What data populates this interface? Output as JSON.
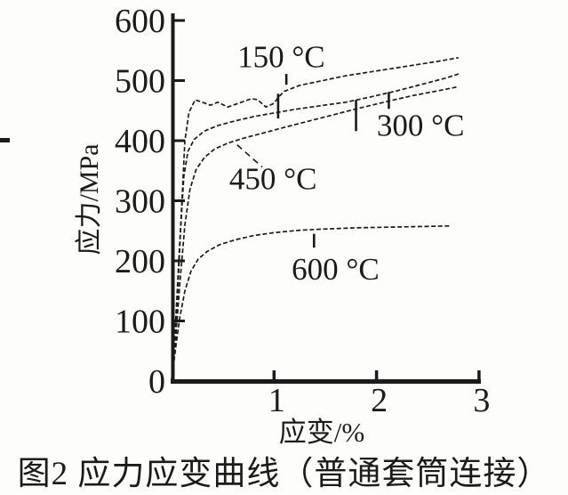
{
  "figure": {
    "caption": "图2 应力应变曲线（普通套筒连接）"
  },
  "colors": {
    "ink": "#1b1b1b",
    "background": "#fdfdfc"
  },
  "chart_data": {
    "type": "line",
    "title": "",
    "xlabel": "应变/%",
    "ylabel": "应力/MPa",
    "xlim": [
      0,
      3.02
    ],
    "ylim": [
      0,
      607
    ],
    "grid": false,
    "legend_position": "inline-labels",
    "xticks": [
      {
        "value": 1,
        "label": "1"
      },
      {
        "value": 2,
        "label": "2"
      },
      {
        "value": 3,
        "label": "3"
      }
    ],
    "yticks": [
      {
        "value": 0,
        "label": "0"
      },
      {
        "value": 100,
        "label": "100"
      },
      {
        "value": 200,
        "label": "200"
      },
      {
        "value": 300,
        "label": "300"
      },
      {
        "value": 400,
        "label": "400"
      },
      {
        "value": 500,
        "label": "500"
      },
      {
        "value": 600,
        "label": "600"
      }
    ],
    "series": [
      {
        "name": "curve-150c",
        "label": "150 °C",
        "label_at": {
          "x": 1.07,
          "y": 540
        },
        "points": [
          [
            0,
            0
          ],
          [
            0.05,
            110
          ],
          [
            0.09,
            260
          ],
          [
            0.13,
            400
          ],
          [
            0.17,
            447
          ],
          [
            0.23,
            468
          ],
          [
            0.3,
            464
          ],
          [
            0.38,
            459
          ],
          [
            0.45,
            464
          ],
          [
            0.55,
            456
          ],
          [
            0.65,
            462
          ],
          [
            0.78,
            470
          ],
          [
            0.84,
            468
          ],
          [
            0.92,
            456
          ],
          [
            1.0,
            462
          ],
          [
            1.04,
            472
          ],
          [
            1.1,
            482
          ],
          [
            1.25,
            492
          ],
          [
            1.42,
            498
          ],
          [
            1.7,
            508
          ],
          [
            2.0,
            516
          ],
          [
            2.3,
            524
          ],
          [
            2.6,
            532
          ],
          [
            2.8,
            538
          ]
        ]
      },
      {
        "name": "curve-300c",
        "label": "300 °C",
        "label_at": {
          "x": 2.43,
          "y": 426
        },
        "points": [
          [
            0,
            0
          ],
          [
            0.04,
            100
          ],
          [
            0.08,
            230
          ],
          [
            0.12,
            340
          ],
          [
            0.16,
            382
          ],
          [
            0.22,
            402
          ],
          [
            0.32,
            416
          ],
          [
            0.45,
            425
          ],
          [
            0.6,
            432
          ],
          [
            0.8,
            440
          ],
          [
            1.0,
            446
          ],
          [
            1.2,
            452
          ],
          [
            1.45,
            458
          ],
          [
            1.7,
            464
          ],
          [
            1.95,
            473
          ],
          [
            2.2,
            483
          ],
          [
            2.45,
            494
          ],
          [
            2.65,
            503
          ],
          [
            2.8,
            511
          ]
        ]
      },
      {
        "name": "curve-450c",
        "label": "450 °C",
        "label_at": {
          "x": 0.99,
          "y": 337
        },
        "points": [
          [
            0,
            0
          ],
          [
            0.04,
            70
          ],
          [
            0.08,
            160
          ],
          [
            0.13,
            260
          ],
          [
            0.18,
            320
          ],
          [
            0.24,
            352
          ],
          [
            0.32,
            372
          ],
          [
            0.42,
            386
          ],
          [
            0.55,
            396
          ],
          [
            0.7,
            404
          ],
          [
            0.9,
            413
          ],
          [
            1.1,
            422
          ],
          [
            1.35,
            433
          ],
          [
            1.6,
            444
          ],
          [
            1.85,
            455
          ],
          [
            2.1,
            465
          ],
          [
            2.35,
            475
          ],
          [
            2.6,
            483
          ],
          [
            2.8,
            490
          ]
        ]
      },
      {
        "name": "curve-600c",
        "label": "600 °C",
        "label_at": {
          "x": 1.6,
          "y": 187
        },
        "points": [
          [
            0,
            0
          ],
          [
            0.04,
            55
          ],
          [
            0.08,
            105
          ],
          [
            0.13,
            150
          ],
          [
            0.19,
            183
          ],
          [
            0.26,
            203
          ],
          [
            0.35,
            216
          ],
          [
            0.47,
            227
          ],
          [
            0.62,
            235
          ],
          [
            0.8,
            242
          ],
          [
            1.0,
            247
          ],
          [
            1.25,
            251
          ],
          [
            1.5,
            253
          ],
          [
            1.8,
            255
          ],
          [
            2.1,
            256
          ],
          [
            2.4,
            257
          ],
          [
            2.72,
            258
          ]
        ]
      }
    ],
    "point_markers": [
      {
        "name": "marker-150c-label-tick",
        "x": 1.12,
        "y_from": 493,
        "y_to": 511
      },
      {
        "name": "marker-150c-step",
        "x": 1.04,
        "y_from": 437,
        "y_to": 478
      },
      {
        "name": "marker-mid-1",
        "x": 1.8,
        "y_from": 416,
        "y_to": 468
      },
      {
        "name": "marker-300c",
        "x": 2.12,
        "y_from": 453,
        "y_to": 481
      },
      {
        "name": "marker-600c",
        "x": 1.39,
        "y_from": 222,
        "y_to": 245
      }
    ],
    "leader_line": {
      "name": "leader-450c",
      "from": {
        "x": 0.64,
        "y": 393
      },
      "to": {
        "x": 0.885,
        "y": 356
      },
      "dashed": true
    }
  }
}
